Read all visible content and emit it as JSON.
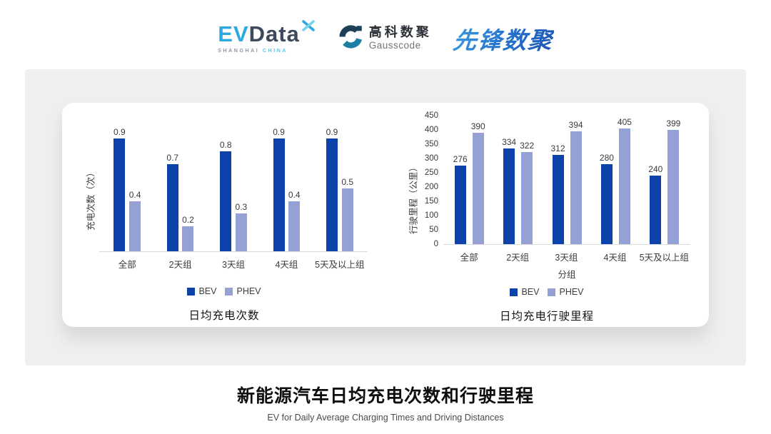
{
  "header": {
    "evdata": {
      "ev": "EV",
      "data": "Data",
      "sub_left": "SHANGHAI",
      "sub_right": "CHINA"
    },
    "gausscode": {
      "cn": "高科数聚",
      "en": "Gausscode"
    },
    "pioneer": "先锋数聚"
  },
  "colors": {
    "bev": "#0C42A9",
    "phev": "#95A0D5"
  },
  "chart_data": [
    {
      "type": "bar",
      "title": "日均充电次数",
      "ylabel": "充电次数（次）",
      "xlabel": "",
      "categories": [
        "全部",
        "2天组",
        "3天组",
        "4天组",
        "5天及以上组"
      ],
      "series": [
        {
          "name": "BEV",
          "color_key": "bev",
          "values": [
            0.9,
            0.7,
            0.8,
            0.9,
            0.9
          ],
          "labels": [
            "0.9",
            "0.7",
            "0.8",
            "0.9",
            "0.9"
          ]
        },
        {
          "name": "PHEV",
          "color_key": "phev",
          "values": [
            0.4,
            0.2,
            0.3,
            0.4,
            0.5
          ],
          "labels": [
            "0.4",
            "0.2",
            "0.3",
            "0.4",
            "0.5"
          ]
        }
      ],
      "ylim": [
        0,
        1.0
      ],
      "y_ticks_visible": false,
      "grid": false,
      "legend_position": "bottom"
    },
    {
      "type": "bar",
      "title": "日均充电行驶里程",
      "ylabel": "行驶里程（公里）",
      "xlabel": "分组",
      "categories": [
        "全部",
        "2天组",
        "3天组",
        "4天组",
        "5天及以上组"
      ],
      "series": [
        {
          "name": "BEV",
          "color_key": "bev",
          "values": [
            276,
            334,
            312,
            280,
            240
          ],
          "labels": [
            "276",
            "334",
            "312",
            "280",
            "240"
          ]
        },
        {
          "name": "PHEV",
          "color_key": "phev",
          "values": [
            390,
            322,
            394,
            405,
            399
          ],
          "labels": [
            "390",
            "322",
            "394",
            "405",
            "399"
          ]
        }
      ],
      "ylim": [
        0,
        450
      ],
      "yticks": [
        0,
        50,
        100,
        150,
        200,
        250,
        300,
        350,
        400,
        450
      ],
      "y_ticks_visible": true,
      "grid": false,
      "legend_position": "bottom"
    }
  ],
  "footer": {
    "title": "新能源汽车日均充电次数和行驶里程",
    "subtitle": "EV for Daily Average Charging Times and Driving Distances"
  }
}
